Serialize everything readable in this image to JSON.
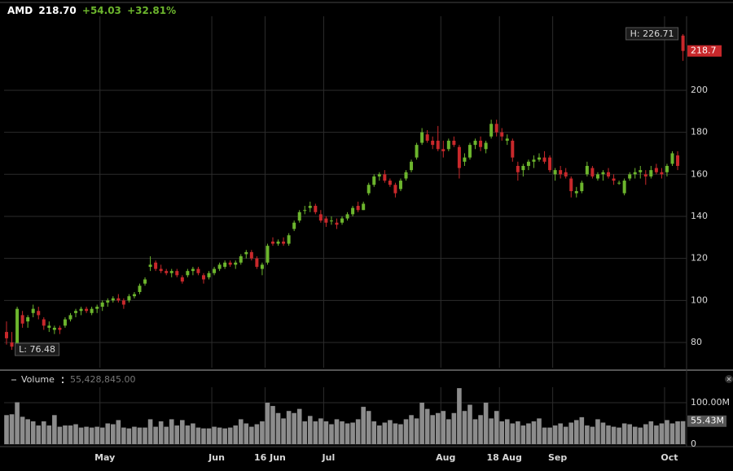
{
  "header": {
    "symbol": "AMD",
    "price": "218.70",
    "change": "+54.03",
    "change_pct": "+32.81%"
  },
  "chart_data": [
    {
      "type": "candlestick",
      "categories": [
        null,
        null,
        null,
        null,
        null,
        null,
        null,
        null,
        null,
        null,
        null,
        null,
        null,
        null,
        null,
        null,
        null,
        null,
        "May",
        null,
        null,
        null,
        null,
        null,
        null,
        null,
        null,
        null,
        null,
        null,
        null,
        null,
        null,
        null,
        null,
        null,
        null,
        null,
        null,
        "Jun",
        null,
        null,
        null,
        null,
        null,
        null,
        null,
        null,
        null,
        "16 Jun",
        null,
        null,
        null,
        null,
        null,
        null,
        null,
        null,
        null,
        null,
        "Jul",
        null,
        null,
        null,
        null,
        null,
        null,
        null,
        null,
        null,
        null,
        null,
        null,
        null,
        null,
        null,
        null,
        null,
        null,
        null,
        null,
        null,
        "Aug",
        null,
        null,
        null,
        null,
        null,
        null,
        null,
        null,
        null,
        null,
        "18 Aug",
        null,
        null,
        null,
        null,
        null,
        null,
        null,
        null,
        null,
        "Sep",
        null,
        null,
        null,
        null,
        null,
        null,
        null,
        null,
        null,
        null,
        null,
        null,
        null,
        null,
        null,
        null,
        null,
        null,
        null,
        null,
        "Oct",
        null,
        null,
        null
      ],
      "open": [
        85,
        80,
        78,
        93,
        90,
        94,
        95,
        91,
        87,
        86,
        87,
        88,
        91,
        94,
        95,
        96,
        94,
        96,
        97,
        99,
        100,
        101,
        100,
        100,
        102,
        104,
        108,
        116,
        118,
        115,
        114,
        113,
        114,
        111,
        112,
        114,
        115,
        112,
        111,
        113,
        115,
        116,
        118,
        117,
        118,
        122,
        123,
        120,
        115,
        118,
        128,
        127,
        128,
        127,
        134,
        138,
        143,
        144,
        145,
        141,
        139,
        138,
        137,
        137,
        139,
        141,
        145,
        143,
        151,
        155,
        159,
        160,
        157,
        155,
        153,
        158,
        162,
        168,
        175,
        179,
        176,
        176,
        172,
        172,
        176,
        173,
        166,
        168,
        174,
        176,
        172,
        178,
        184,
        180,
        176,
        176,
        164,
        162,
        164,
        166,
        167,
        168,
        168,
        160,
        162,
        161,
        158,
        151,
        152,
        160,
        163,
        158,
        160,
        161,
        158,
        156,
        151,
        158,
        160,
        161,
        160,
        159,
        163,
        161,
        161,
        165,
        169,
        226
      ],
      "high": [
        90,
        85,
        97,
        95,
        93,
        98,
        97,
        92,
        90,
        88,
        88,
        92,
        94,
        96,
        97,
        97,
        97,
        98,
        100,
        101,
        102,
        103,
        101,
        103,
        104,
        108,
        111,
        121,
        119,
        117,
        115,
        115,
        115,
        112,
        115,
        116,
        116,
        113,
        114,
        116,
        118,
        119,
        119,
        119,
        122,
        124,
        124,
        121,
        118,
        127,
        130,
        129,
        130,
        132,
        138,
        143,
        145,
        147,
        146,
        143,
        140,
        140,
        139,
        140,
        142,
        145,
        147,
        147,
        156,
        160,
        161,
        162,
        158,
        156,
        158,
        162,
        167,
        175,
        182,
        181,
        178,
        183,
        176,
        177,
        178,
        174,
        170,
        175,
        177,
        178,
        176,
        186,
        186,
        182,
        179,
        177,
        166,
        165,
        167,
        169,
        170,
        171,
        169,
        163,
        164,
        163,
        159,
        154,
        157,
        166,
        164,
        161,
        162,
        163,
        160,
        157,
        158,
        161,
        163,
        164,
        162,
        164,
        165,
        163,
        165,
        171,
        171,
        226.71
      ],
      "low": [
        79,
        76.48,
        77,
        87,
        87,
        92,
        91,
        86,
        85,
        84,
        84,
        87,
        90,
        92,
        93,
        94,
        93,
        94,
        95,
        97,
        99,
        99,
        96,
        99,
        101,
        103,
        107,
        114,
        114,
        113,
        112,
        111,
        111,
        108,
        111,
        112,
        112,
        108,
        110,
        112,
        114,
        115,
        116,
        115,
        117,
        120,
        119,
        115,
        112,
        117,
        126,
        126,
        126,
        126,
        133,
        137,
        141,
        142,
        141,
        137,
        135,
        136,
        134,
        136,
        138,
        140,
        142,
        143,
        150,
        154,
        157,
        156,
        154,
        149,
        152,
        157,
        161,
        167,
        174,
        175,
        172,
        171,
        168,
        171,
        173,
        158,
        164,
        167,
        172,
        171,
        170,
        177,
        178,
        176,
        174,
        166,
        157,
        159,
        162,
        163,
        166,
        165,
        161,
        157,
        158,
        158,
        149,
        149,
        151,
        159,
        158,
        157,
        157,
        158,
        155,
        155,
        150,
        157,
        158,
        158,
        155,
        158,
        160,
        158,
        159,
        164,
        162,
        214
      ],
      "close": [
        82,
        78,
        96,
        89,
        92,
        96,
        93,
        88,
        88,
        87,
        86,
        91,
        93,
        95,
        96,
        95,
        96,
        97,
        99,
        100,
        101,
        100,
        98,
        102,
        103,
        107,
        110,
        117,
        115,
        114,
        113,
        114,
        112,
        109,
        114,
        115,
        113,
        110,
        113,
        115,
        117,
        118,
        117,
        118,
        121,
        123,
        120,
        116,
        117,
        126,
        127,
        128,
        127,
        131,
        137,
        142,
        143,
        145,
        142,
        138,
        137,
        138,
        136,
        139,
        141,
        144,
        143,
        146,
        155,
        159,
        160,
        157,
        155,
        151,
        157,
        161,
        166,
        174,
        180,
        176,
        174,
        172,
        171,
        176,
        174,
        163,
        168,
        174,
        176,
        173,
        175,
        184,
        180,
        178,
        177,
        168,
        161,
        164,
        166,
        167,
        168,
        166,
        162,
        162,
        160,
        159,
        152,
        152,
        156,
        164,
        159,
        160,
        161,
        159,
        157,
        156,
        157,
        160,
        161,
        162,
        159,
        162,
        161,
        160,
        164,
        170,
        164,
        218.7
      ],
      "ylim": [
        68,
        235.2
      ],
      "yticks": [
        80,
        100,
        120,
        140,
        160,
        180,
        200
      ],
      "up_color": "#6cb52d",
      "down_color": "#c8282b",
      "grid": true,
      "high_marker": {
        "value": 226.71,
        "label": "H: 226.71"
      },
      "low_marker": {
        "value": 76.48,
        "label": "L: 76.48"
      },
      "last_marker": {
        "value": 218.7,
        "label": "218.7"
      }
    },
    {
      "type": "bar",
      "name": "Volume",
      "readout": "55,428,845.00",
      "values": [
        70,
        72,
        101,
        66,
        60,
        55,
        45,
        55,
        45,
        70,
        42,
        45,
        45,
        48,
        40,
        42,
        40,
        42,
        40,
        50,
        48,
        58,
        40,
        38,
        42,
        40,
        40,
        60,
        42,
        55,
        42,
        60,
        45,
        58,
        45,
        50,
        40,
        38,
        38,
        42,
        40,
        38,
        40,
        45,
        60,
        50,
        42,
        48,
        55,
        100,
        92,
        75,
        62,
        80,
        75,
        85,
        55,
        68,
        55,
        62,
        55,
        48,
        60,
        55,
        50,
        52,
        60,
        90,
        80,
        55,
        45,
        52,
        58,
        50,
        48,
        60,
        70,
        62,
        100,
        85,
        70,
        75,
        80,
        60,
        75,
        135,
        80,
        95,
        60,
        70,
        100,
        62,
        80,
        55,
        60,
        50,
        55,
        45,
        50,
        55,
        62,
        40,
        40,
        45,
        50,
        42,
        52,
        58,
        65,
        45,
        42,
        60,
        52,
        45,
        42,
        40,
        50,
        48,
        42,
        40,
        48,
        55,
        45,
        50,
        58,
        50,
        55,
        55.43
      ],
      "color": "#8c8c8c",
      "ylim": [
        0,
        137.25
      ],
      "yticks": [
        0,
        {
          "value": 100,
          "label": "100.00M"
        }
      ],
      "last_marker": {
        "value": 55.43,
        "label": "55.43M"
      }
    }
  ]
}
